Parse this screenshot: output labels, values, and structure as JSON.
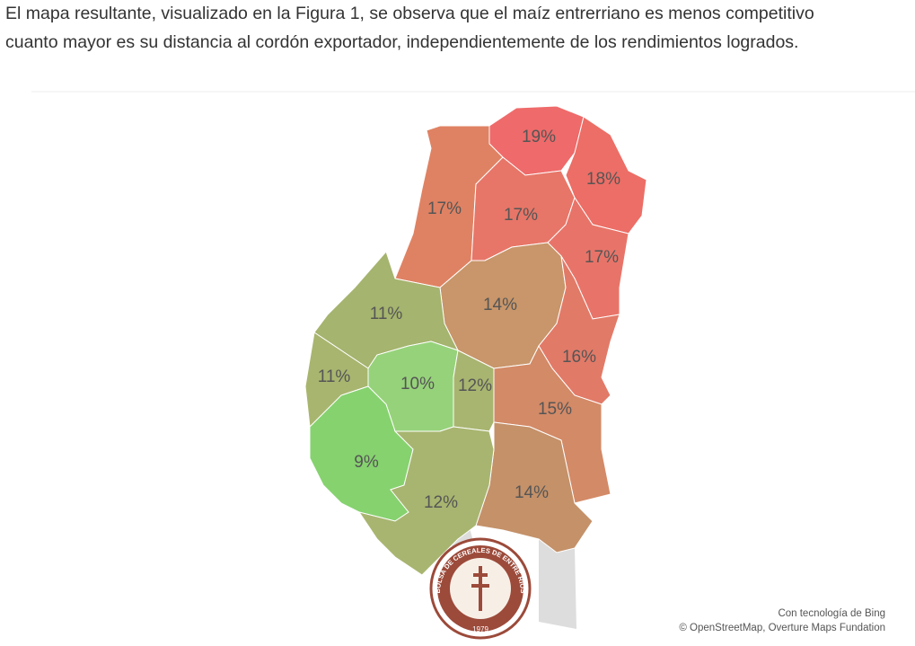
{
  "paragraph": {
    "lines": [
      "El mapa resultante, visualizado en la Figura 1, se observa que el maíz entrerriano es menos competitivo",
      "cuanto mayor es su distancia al cordón exportador, independientemente de los rendimientos logrados."
    ]
  },
  "map": {
    "regions": [
      {
        "label": "19%",
        "color": "#ef6a6a"
      },
      {
        "label": "18%",
        "color": "#ec6e66"
      },
      {
        "label": "17%",
        "color": "#df8263"
      },
      {
        "label": "17%",
        "color": "#e77668"
      },
      {
        "label": "17%",
        "color": "#e87469"
      },
      {
        "label": "14%",
        "color": "#c8966a"
      },
      {
        "label": "16%",
        "color": "#e27a68"
      },
      {
        "label": "15%",
        "color": "#d38a67"
      },
      {
        "label": "14%",
        "color": "#c49169"
      },
      {
        "label": "11%",
        "color": "#a5b46e"
      },
      {
        "label": "11%",
        "color": "#a8b56f"
      },
      {
        "label": "10%",
        "color": "#96d27a"
      },
      {
        "label": "12%",
        "color": "#a8b570"
      },
      {
        "label": "9%",
        "color": "#86d26f"
      },
      {
        "label": "12%",
        "color": "#a8b570"
      }
    ],
    "logo": {
      "name": "BOLSA DE CEREALES DE ENTRE RÍOS",
      "year": "1979"
    },
    "credits": [
      "Con tecnología de Bing",
      "© OpenStreetMap, Overture Maps Fundation"
    ]
  }
}
